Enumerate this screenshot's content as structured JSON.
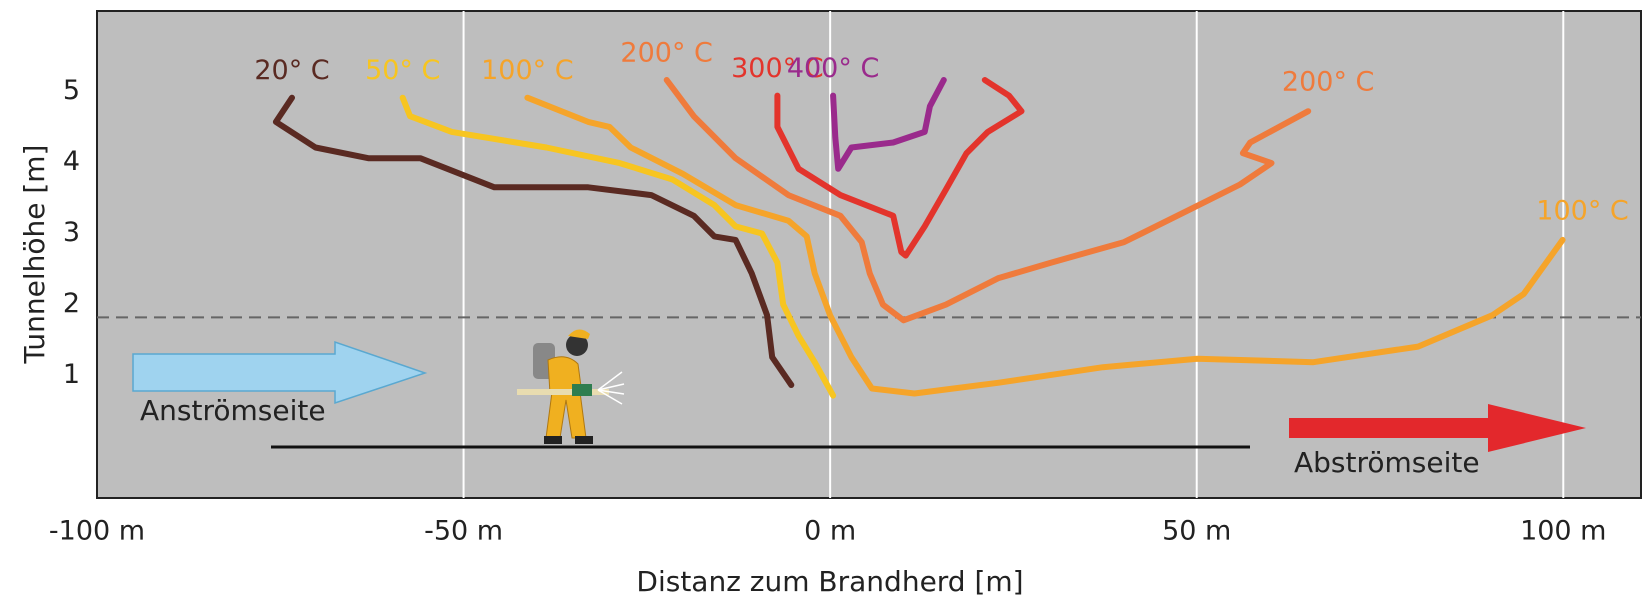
{
  "chart_data": {
    "type": "line",
    "xlabel": "Distanz zum Brandherd [m]",
    "ylabel": "Tunnelhöhe [m]",
    "xlim": [
      -100,
      110.6
    ],
    "ylim": [
      -0.72,
      6.13
    ],
    "xticks": [
      {
        "value": -100,
        "label": "-100 m"
      },
      {
        "value": -50,
        "label": "-50 m"
      },
      {
        "value": 0,
        "label": "0 m"
      },
      {
        "value": 50,
        "label": "50 m"
      },
      {
        "value": 100,
        "label": "100 m"
      }
    ],
    "yticks": [
      1,
      2,
      3,
      4,
      5
    ],
    "grid": true,
    "hline": 1.82,
    "annotations": [
      "Anströmseite",
      "Abströmseite"
    ],
    "series": [
      {
        "name": "20° C",
        "color": "#5a2a22",
        "x": [
          -73.4,
          -75.6,
          -70.2,
          -63.0,
          -55.9,
          -45.8,
          -33.0,
          -24.4,
          -18.6,
          -15.8,
          -12.9,
          -10.7,
          -8.6,
          -7.9,
          -5.3
        ],
        "values": [
          4.91,
          4.57,
          4.21,
          4.06,
          4.06,
          3.65,
          3.65,
          3.54,
          3.25,
          2.96,
          2.91,
          2.44,
          1.85,
          1.26,
          0.87
        ]
      },
      {
        "name": "50° C",
        "color": "#f7c520",
        "x": [
          -58.3,
          -57.3,
          -51.6,
          -38.7,
          -28.7,
          -21.5,
          -15.8,
          -12.9,
          -9.3,
          -7.2,
          -6.4,
          -4.3,
          -2.1,
          0.4
        ],
        "values": [
          4.91,
          4.65,
          4.43,
          4.21,
          3.99,
          3.76,
          3.4,
          3.1,
          3.0,
          2.59,
          2.0,
          1.56,
          1.19,
          0.72
        ]
      },
      {
        "name": "100° C",
        "color": "#f5a42a",
        "x": [
          -41.3,
          -33.0,
          -30.1,
          -27.2,
          -20.1,
          -12.9,
          -5.7,
          -3.2,
          -2.1,
          0,
          2.9,
          5.7,
          11.5,
          22.9,
          37.2,
          50.1,
          65.9,
          80.2,
          90.3,
          94.6,
          99.9
        ],
        "values": [
          4.91,
          4.57,
          4.5,
          4.21,
          3.84,
          3.4,
          3.18,
          2.96,
          2.44,
          1.85,
          1.26,
          0.82,
          0.75,
          0.9,
          1.12,
          1.24,
          1.19,
          1.41,
          1.85,
          2.15,
          2.91
        ]
      },
      {
        "name": "200° C",
        "color": "#ef7b3c",
        "x": [
          -22.3,
          -18.6,
          -12.9,
          -5.7,
          1.4,
          4.3,
          5.4,
          7.2,
          10.0,
          15.8,
          22.9,
          30.1,
          40.1,
          48.7,
          55.9,
          60.2,
          56.3,
          57.3,
          65.2
        ],
        "values": [
          5.16,
          4.65,
          4.06,
          3.54,
          3.25,
          2.88,
          2.44,
          2.0,
          1.78,
          2.0,
          2.37,
          2.59,
          2.88,
          3.32,
          3.69,
          3.99,
          4.13,
          4.28,
          4.72
        ]
      },
      {
        "name": "300° C",
        "color": "#e3342c",
        "x": [
          -7.2,
          -7.2,
          -4.3,
          1.4,
          8.6,
          9.7,
          10.3,
          12.9,
          15.8,
          18.6,
          21.5,
          26.1,
          24.4,
          21.1
        ],
        "values": [
          4.94,
          4.5,
          3.91,
          3.54,
          3.25,
          2.74,
          2.69,
          3.1,
          3.62,
          4.13,
          4.43,
          4.72,
          4.94,
          5.16
        ]
      },
      {
        "name": "400° C",
        "color": "#9a2a8c",
        "x": [
          0.4,
          0.7,
          1.1,
          2.9,
          8.6,
          12.9,
          13.6,
          15.5
        ],
        "values": [
          4.94,
          4.35,
          3.91,
          4.21,
          4.28,
          4.43,
          4.79,
          5.16
        ]
      }
    ]
  }
}
